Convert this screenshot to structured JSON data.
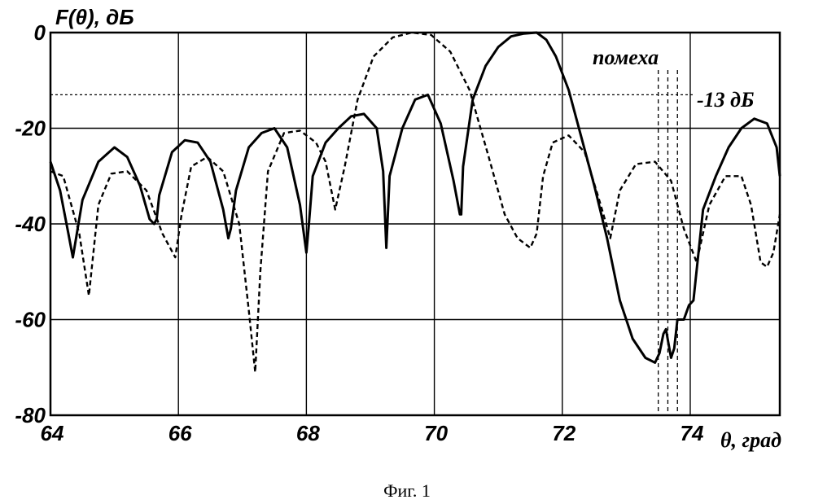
{
  "chart_data": {
    "type": "line",
    "ylabel": "F(θ),  дБ",
    "xlabel": "θ, град",
    "xlim": [
      64,
      75.4
    ],
    "ylim": [
      -80,
      0
    ],
    "xticks": [
      64,
      66,
      68,
      70,
      72,
      74
    ],
    "yticks": [
      0,
      -20,
      -40,
      -60,
      -80
    ],
    "grid": true,
    "annotations": {
      "interference_label": "помеха",
      "level_label": "-13 дБ",
      "level_value": -13,
      "interference_x": [
        73.5,
        73.65,
        73.8
      ]
    },
    "series": [
      {
        "style": "solid",
        "x": [
          64.0,
          64.15,
          64.28,
          64.35,
          64.5,
          64.75,
          65.0,
          65.2,
          65.4,
          65.55,
          65.62,
          65.66,
          65.7,
          65.9,
          66.1,
          66.3,
          66.5,
          66.7,
          66.78,
          66.82,
          66.9,
          67.1,
          67.3,
          67.5,
          67.7,
          67.9,
          68.0,
          68.04,
          68.1,
          68.3,
          68.5,
          68.7,
          68.9,
          69.1,
          69.2,
          69.25,
          69.3,
          69.5,
          69.7,
          69.9,
          70.1,
          70.3,
          70.4,
          70.42,
          70.45,
          70.6,
          70.8,
          71.0,
          71.2,
          71.4,
          71.6,
          71.75,
          71.9,
          72.1,
          72.3,
          72.5,
          72.7,
          72.9,
          73.1,
          73.3,
          73.45,
          73.52,
          73.58,
          73.62,
          73.66,
          73.7,
          73.75,
          73.8,
          73.9,
          73.98,
          74.05,
          74.2,
          74.4,
          74.6,
          74.8,
          75.0,
          75.2,
          75.35,
          75.4
        ],
        "y": [
          -27,
          -33,
          -42,
          -47,
          -35,
          -27,
          -24,
          -26,
          -32,
          -39,
          -40,
          -39,
          -34,
          -25,
          -22.5,
          -23,
          -27,
          -37,
          -43,
          -41,
          -33,
          -24,
          -21,
          -20,
          -24,
          -36,
          -46,
          -40,
          -30,
          -23,
          -20,
          -17.5,
          -17,
          -20,
          -29,
          -45,
          -30,
          -20,
          -14,
          -13,
          -19,
          -31,
          -38,
          -38,
          -28,
          -14,
          -7,
          -3,
          -0.8,
          -0.2,
          0,
          -1.5,
          -5,
          -12,
          -22,
          -32,
          -43,
          -56,
          -64,
          -68,
          -69,
          -67,
          -63,
          -62,
          -65,
          -68,
          -66,
          -60,
          -60,
          -57,
          -56,
          -37,
          -30,
          -24,
          -20,
          -18,
          -19,
          -24,
          -30
        ]
      },
      {
        "style": "dashed",
        "x": [
          64.0,
          64.2,
          64.45,
          64.6,
          64.75,
          64.95,
          65.2,
          65.5,
          65.75,
          65.95,
          66.05,
          66.2,
          66.45,
          66.7,
          66.95,
          67.1,
          67.2,
          67.28,
          67.4,
          67.65,
          67.9,
          68.15,
          68.3,
          68.45,
          68.6,
          68.8,
          69.05,
          69.35,
          69.65,
          69.95,
          70.25,
          70.55,
          70.85,
          71.1,
          71.3,
          71.5,
          71.6,
          71.7,
          71.85,
          72.1,
          72.35,
          72.6,
          72.75,
          72.9,
          73.15,
          73.45,
          73.7,
          73.9,
          74.1,
          74.3,
          74.55,
          74.8,
          74.95,
          75.1,
          75.2,
          75.3,
          75.4
        ],
        "y": [
          -29,
          -30,
          -42,
          -55,
          -36,
          -29.5,
          -29,
          -33,
          -42,
          -47,
          -38,
          -28,
          -26,
          -29,
          -40,
          -58,
          -71,
          -50,
          -29,
          -21,
          -20.5,
          -23,
          -27,
          -37,
          -28,
          -14,
          -5,
          -1,
          0,
          -0.5,
          -4,
          -12,
          -26,
          -38,
          -43,
          -45,
          -42,
          -30,
          -23,
          -21.5,
          -25,
          -36,
          -43,
          -33,
          -27.5,
          -27,
          -31,
          -41,
          -48,
          -36,
          -30,
          -30,
          -36,
          -48,
          -49,
          -46,
          -38
        ]
      }
    ]
  },
  "caption": "Фиг. 1"
}
